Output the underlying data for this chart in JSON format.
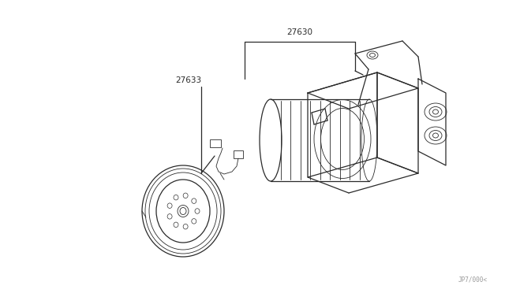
{
  "bg_color": "#ffffff",
  "line_color": "#2a2a2a",
  "label_27630": "27630",
  "label_27633": "27633",
  "watermark": "JP7/000<",
  "fig_width": 6.4,
  "fig_height": 3.72,
  "dpi": 100
}
